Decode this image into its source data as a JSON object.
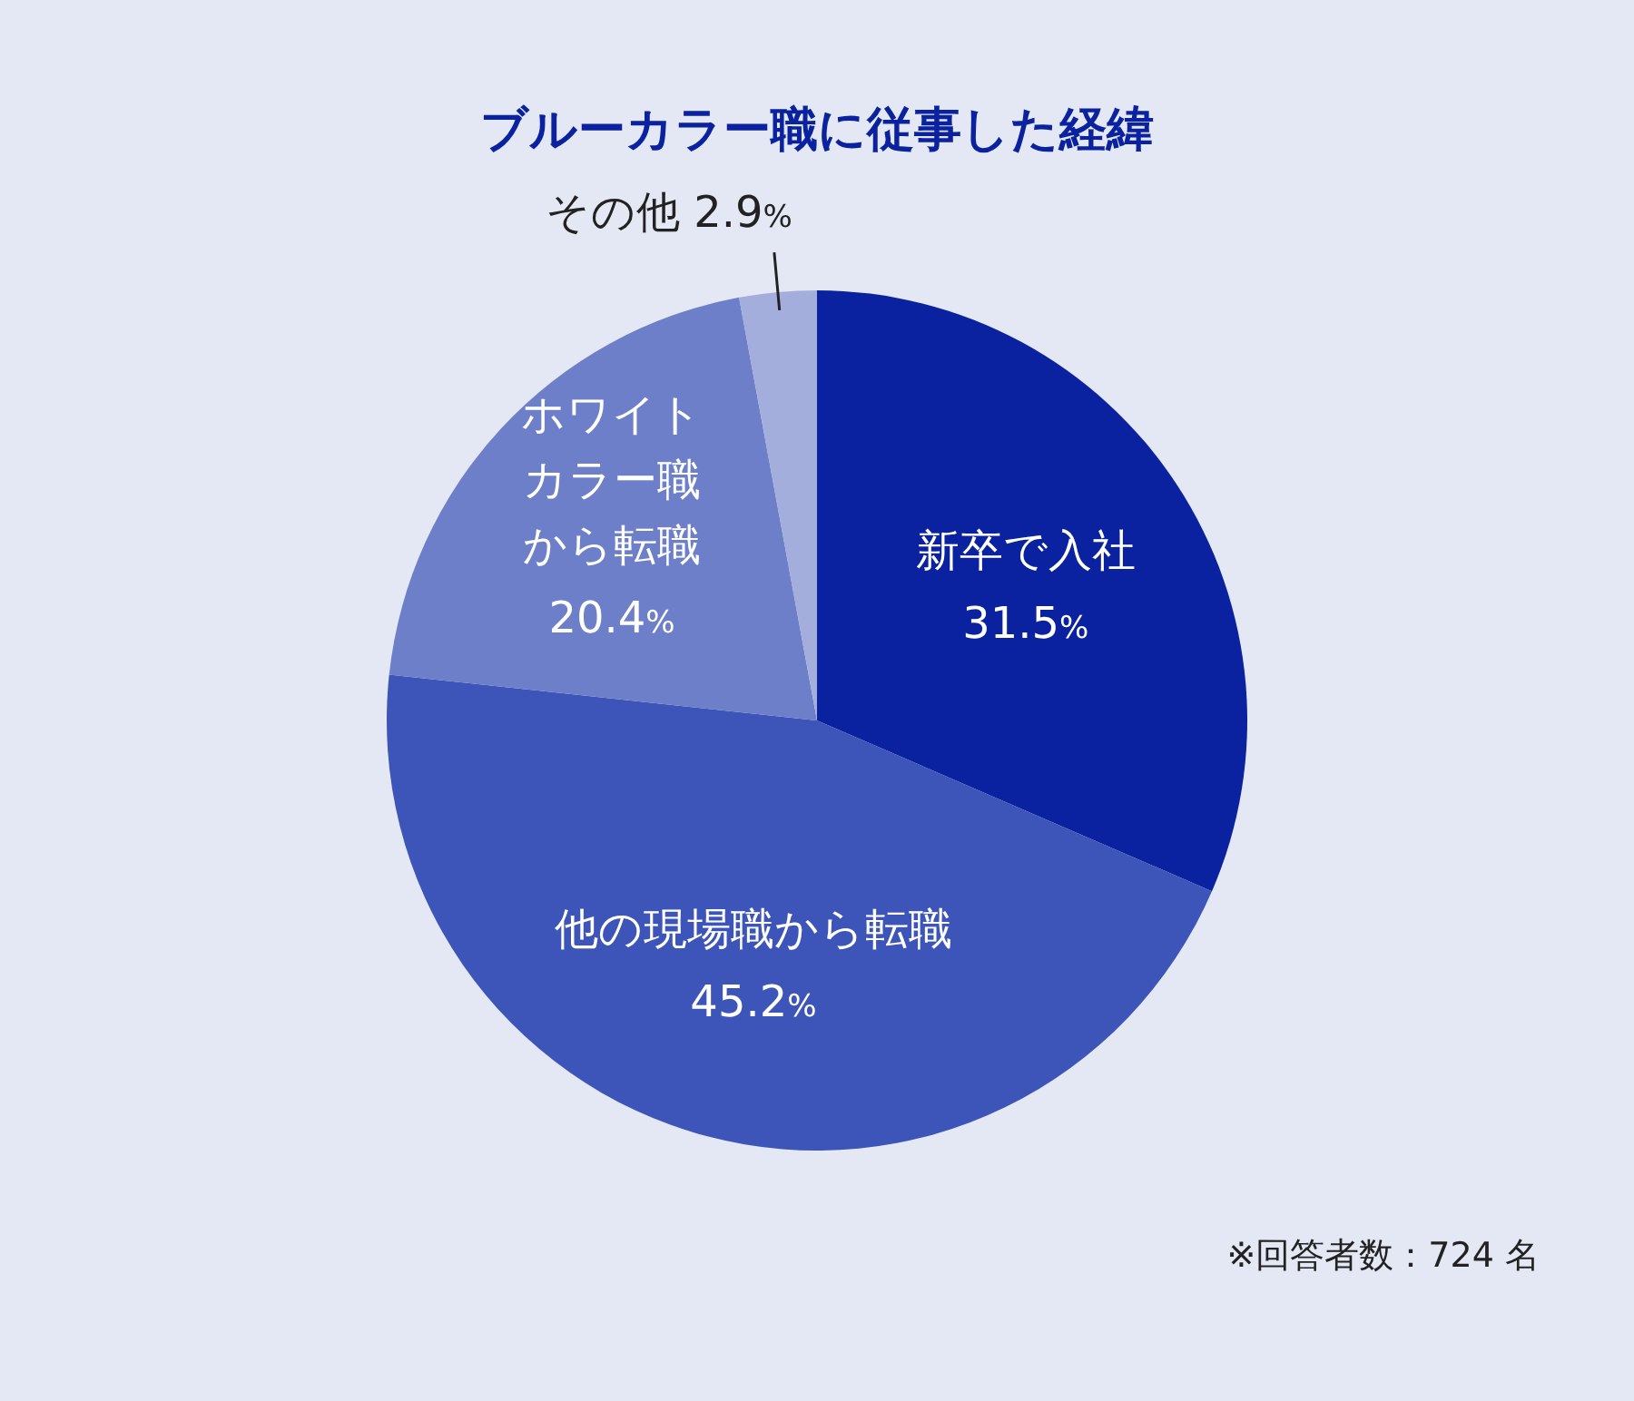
{
  "chart_data": {
    "type": "pie",
    "title": "ブルーカラー職に従事した経緯",
    "categories": [
      "新卒で入社",
      "他の現場職から転職",
      "ホワイトカラー職から転職",
      "その他"
    ],
    "values": [
      31.5,
      45.2,
      20.4,
      2.9
    ],
    "value_labels": [
      "31.5%",
      "45.2%",
      "20.4%",
      "2.9%"
    ],
    "colors": [
      "#0a229f",
      "#3d54b8",
      "#6e7fc9",
      "#a3aedd"
    ],
    "annotations": [
      "※回答者数：724 名"
    ]
  }
}
